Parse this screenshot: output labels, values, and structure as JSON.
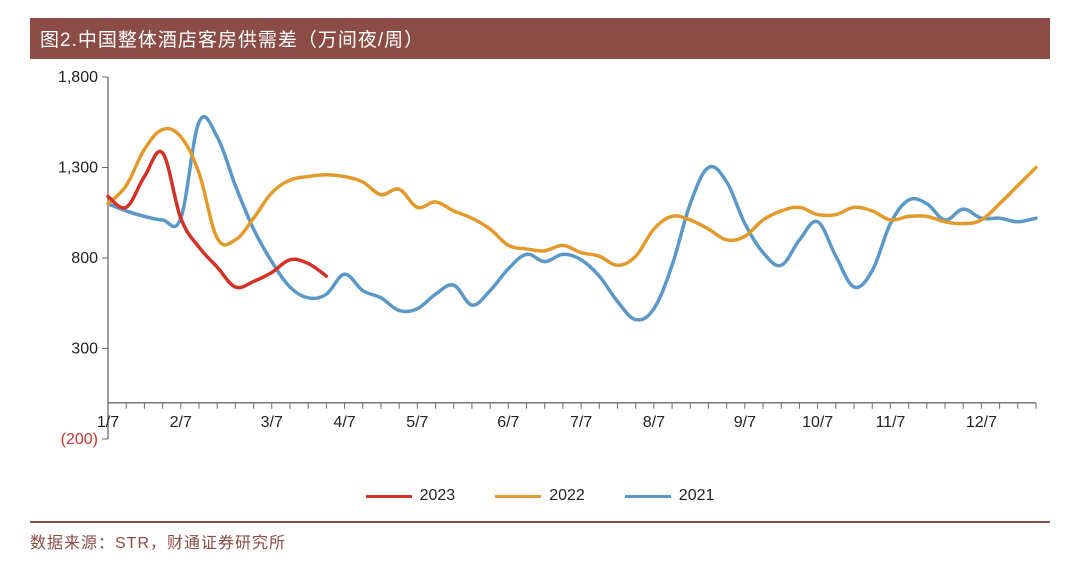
{
  "title": "图2.中国整体酒店客房供需差（万间夜/周）",
  "colors": {
    "title_bg": "#8b4c45",
    "title_text": "#ffffff",
    "axis_text": "#222222",
    "neg_text": "#c4362e",
    "axis_line": "#6b6b6b",
    "source_text": "#8b4c45",
    "rule_line": "#8b4c45",
    "bg": "#ffffff"
  },
  "chart": {
    "type": "line",
    "ylim": [
      -200,
      1800
    ],
    "ytick_step": 500,
    "yticks": [
      {
        "v": -200,
        "label": "(200)",
        "neg": true
      },
      {
        "v": 300,
        "label": "300",
        "neg": false
      },
      {
        "v": 800,
        "label": "800",
        "neg": false
      },
      {
        "v": 1300,
        "label": "1,300",
        "neg": false
      },
      {
        "v": 1800,
        "label": "1,800",
        "neg": false
      }
    ],
    "x_count": 52,
    "x_major_ticks": [
      {
        "i": 0,
        "label": "1/7"
      },
      {
        "i": 4,
        "label": "2/7"
      },
      {
        "i": 9,
        "label": "3/7"
      },
      {
        "i": 13,
        "label": "4/7"
      },
      {
        "i": 17,
        "label": "5/7"
      },
      {
        "i": 22,
        "label": "6/7"
      },
      {
        "i": 26,
        "label": "7/7"
      },
      {
        "i": 30,
        "label": "8/7"
      },
      {
        "i": 35,
        "label": "9/7"
      },
      {
        "i": 39,
        "label": "10/7"
      },
      {
        "i": 43,
        "label": "11/7"
      },
      {
        "i": 48,
        "label": "12/7"
      }
    ],
    "line_width": 3.5,
    "series": [
      {
        "name": "2023",
        "color": "#d43127",
        "values": [
          1140,
          1080,
          1250,
          1380,
          1020,
          860,
          750,
          640,
          670,
          720,
          790,
          770,
          700
        ]
      },
      {
        "name": "2022",
        "color": "#e39a2d",
        "values": [
          1100,
          1200,
          1400,
          1510,
          1470,
          1270,
          910,
          900,
          1020,
          1160,
          1230,
          1250,
          1260,
          1250,
          1220,
          1150,
          1180,
          1080,
          1110,
          1060,
          1020,
          960,
          870,
          850,
          840,
          870,
          830,
          810,
          760,
          810,
          960,
          1030,
          1010,
          960,
          900,
          920,
          1010,
          1060,
          1080,
          1040,
          1040,
          1080,
          1060,
          1010,
          1030,
          1030,
          1000,
          990,
          1010,
          1100,
          1200,
          1300
        ]
      },
      {
        "name": "2021",
        "color": "#5b98c7",
        "values": [
          1100,
          1060,
          1030,
          1010,
          1020,
          1550,
          1470,
          1200,
          960,
          780,
          640,
          580,
          600,
          710,
          620,
          580,
          510,
          520,
          600,
          650,
          540,
          620,
          740,
          820,
          780,
          820,
          790,
          700,
          560,
          460,
          520,
          760,
          1100,
          1300,
          1220,
          990,
          830,
          760,
          900,
          1000,
          810,
          640,
          730,
          990,
          1120,
          1100,
          1010,
          1070,
          1020,
          1020,
          1000,
          1020
        ]
      }
    ]
  },
  "legend": [
    {
      "label": "2023",
      "color": "#d43127"
    },
    {
      "label": "2022",
      "color": "#e39a2d"
    },
    {
      "label": "2021",
      "color": "#5b98c7"
    }
  ],
  "source": "数据来源：STR，财通证券研究所"
}
